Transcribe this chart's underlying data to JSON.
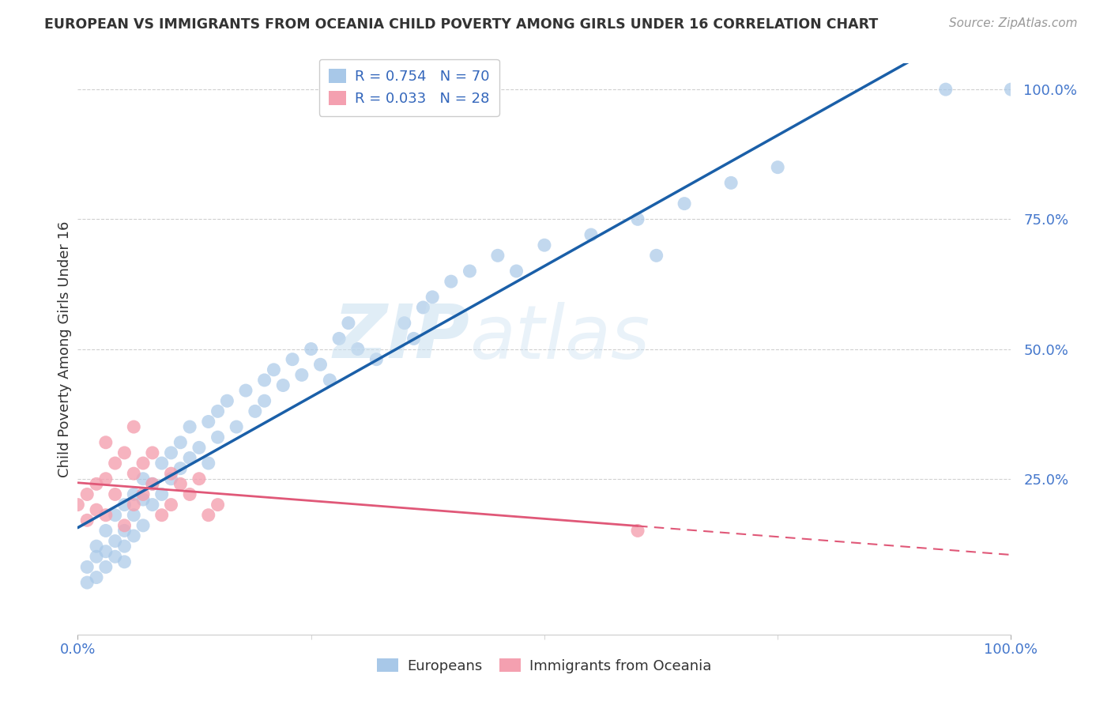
{
  "title": "EUROPEAN VS IMMIGRANTS FROM OCEANIA CHILD POVERTY AMONG GIRLS UNDER 16 CORRELATION CHART",
  "source": "Source: ZipAtlas.com",
  "ylabel": "Child Poverty Among Girls Under 16",
  "R_blue": 0.754,
  "N_blue": 70,
  "R_pink": 0.033,
  "N_pink": 28,
  "legend_blue": "Europeans",
  "legend_pink": "Immigrants from Oceania",
  "blue_color": "#a8c8e8",
  "pink_color": "#f4a0b0",
  "line_blue": "#1a5fa8",
  "line_pink": "#e05878",
  "watermark_zip": "ZIP",
  "watermark_atlas": "atlas",
  "xlim": [
    0.0,
    1.0
  ],
  "ylim": [
    -0.05,
    1.05
  ],
  "ytick_vals": [
    0.25,
    0.5,
    0.75,
    1.0
  ],
  "ytick_labels": [
    "25.0%",
    "50.0%",
    "75.0%",
    "100.0%"
  ],
  "background_color": "#ffffff",
  "grid_color": "#d0d0d0",
  "blue_x": [
    0.01,
    0.01,
    0.02,
    0.02,
    0.02,
    0.03,
    0.03,
    0.03,
    0.04,
    0.04,
    0.04,
    0.05,
    0.05,
    0.05,
    0.05,
    0.06,
    0.06,
    0.06,
    0.07,
    0.07,
    0.07,
    0.08,
    0.08,
    0.09,
    0.09,
    0.1,
    0.1,
    0.11,
    0.11,
    0.12,
    0.12,
    0.13,
    0.14,
    0.14,
    0.15,
    0.15,
    0.16,
    0.17,
    0.18,
    0.19,
    0.2,
    0.2,
    0.21,
    0.22,
    0.23,
    0.24,
    0.25,
    0.26,
    0.27,
    0.28,
    0.29,
    0.3,
    0.32,
    0.35,
    0.36,
    0.37,
    0.38,
    0.4,
    0.42,
    0.45,
    0.47,
    0.5,
    0.55,
    0.6,
    0.62,
    0.65,
    0.7,
    0.75,
    0.93,
    1.0
  ],
  "blue_y": [
    0.05,
    0.08,
    0.1,
    0.06,
    0.12,
    0.08,
    0.11,
    0.15,
    0.1,
    0.13,
    0.18,
    0.12,
    0.15,
    0.09,
    0.2,
    0.14,
    0.18,
    0.22,
    0.16,
    0.21,
    0.25,
    0.2,
    0.24,
    0.22,
    0.28,
    0.25,
    0.3,
    0.27,
    0.32,
    0.29,
    0.35,
    0.31,
    0.36,
    0.28,
    0.38,
    0.33,
    0.4,
    0.35,
    0.42,
    0.38,
    0.44,
    0.4,
    0.46,
    0.43,
    0.48,
    0.45,
    0.5,
    0.47,
    0.44,
    0.52,
    0.55,
    0.5,
    0.48,
    0.55,
    0.52,
    0.58,
    0.6,
    0.63,
    0.65,
    0.68,
    0.65,
    0.7,
    0.72,
    0.75,
    0.68,
    0.78,
    0.82,
    0.85,
    1.0,
    1.0
  ],
  "pink_x": [
    0.0,
    0.01,
    0.01,
    0.02,
    0.02,
    0.03,
    0.03,
    0.03,
    0.04,
    0.04,
    0.05,
    0.05,
    0.06,
    0.06,
    0.06,
    0.07,
    0.07,
    0.08,
    0.08,
    0.09,
    0.1,
    0.1,
    0.11,
    0.12,
    0.13,
    0.14,
    0.15,
    0.6
  ],
  "pink_y": [
    0.2,
    0.22,
    0.17,
    0.24,
    0.19,
    0.32,
    0.25,
    0.18,
    0.28,
    0.22,
    0.3,
    0.16,
    0.26,
    0.2,
    0.35,
    0.22,
    0.28,
    0.24,
    0.3,
    0.18,
    0.26,
    0.2,
    0.24,
    0.22,
    0.25,
    0.18,
    0.2,
    0.15
  ]
}
